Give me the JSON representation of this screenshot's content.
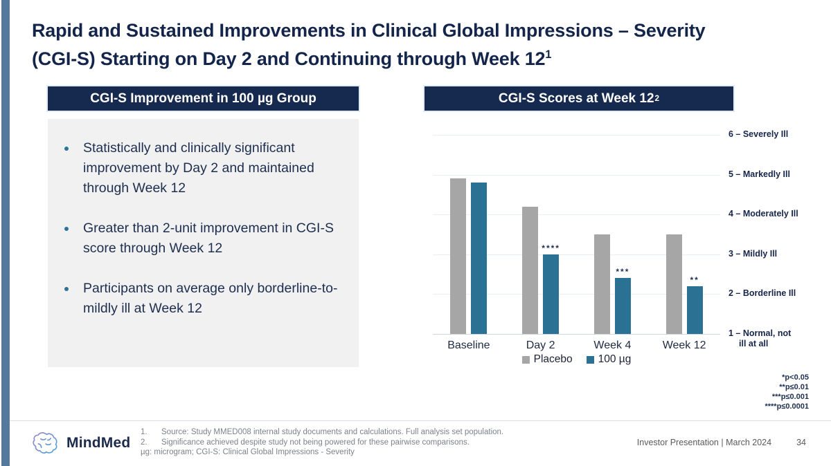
{
  "slide": {
    "title_line1": "Rapid and Sustained Improvements in Clinical Global Impressions – Severity",
    "title_line2": "(CGI-S) Starting on Day 2 and Continuing through Week 12",
    "title_superscript": "1"
  },
  "left_panel": {
    "header": "CGI-S Improvement in 100 µg Group",
    "bullets": [
      "Statistically and clinically significant improvement by Day 2 and maintained through Week 12",
      "Greater than 2-unit improvement in CGI-S score through Week 12",
      "Participants on average only borderline-to-mildly ill at Week 12"
    ]
  },
  "right_panel": {
    "header": "CGI-S Scores at Week 12",
    "header_superscript": "2"
  },
  "chart_data": {
    "type": "bar",
    "categories": [
      "Baseline",
      "Day 2",
      "Week 4",
      "Week 12"
    ],
    "series": [
      {
        "name": "Placebo",
        "color": "#a6a6a6",
        "values": [
          4.9,
          4.2,
          3.5,
          3.5
        ]
      },
      {
        "name": "100 µg",
        "color": "#2a7194",
        "values": [
          4.8,
          3.0,
          2.4,
          2.2
        ]
      }
    ],
    "annotations": {
      "series": "100 µg",
      "labels": [
        "",
        "****",
        "***",
        "**"
      ]
    },
    "y_axis_labels": [
      {
        "value": 6,
        "label": "6 – Severely Ill"
      },
      {
        "value": 5,
        "label": "5 – Markedly Ill"
      },
      {
        "value": 4,
        "label": "4 – Moderately Ill"
      },
      {
        "value": 3,
        "label": "3 – Mildly Ill"
      },
      {
        "value": 2,
        "label": "2 – Borderline Ill"
      },
      {
        "value": 1,
        "label": "1 – Normal, not",
        "label2": "ill at all"
      }
    ],
    "ylim": [
      1,
      6
    ],
    "grid": true,
    "legend_position": "bottom",
    "xlabel": "",
    "ylabel": ""
  },
  "significance_notes": [
    "*p<0.05",
    "**p≤0.01",
    "***p≤0.001",
    "****p≤0.0001"
  ],
  "footer": {
    "logo_text": "MindMed",
    "footnotes": [
      {
        "num": "1.",
        "text": "Source: Study MMED008 internal study documents and calculations. Full analysis set population."
      },
      {
        "num": "2.",
        "text": "Significance achieved despite study not being powered for these pairwise comparisons."
      }
    ],
    "abbreviation_note": "µg: microgram; CGI-S: Clinical Global Impressions - Severity",
    "right_text": "Investor Presentation | March 2024",
    "page_number": "34"
  },
  "colors": {
    "accent_bar": "#55799c",
    "header_box": "#16294e",
    "title_text": "#13254b",
    "panel_body_bg": "#f1f1f1",
    "bullet_dot": "#2d7396",
    "placebo_bar": "#a6a6a6",
    "treatment_bar": "#2a7194",
    "footnote_text": "#7d818b"
  }
}
